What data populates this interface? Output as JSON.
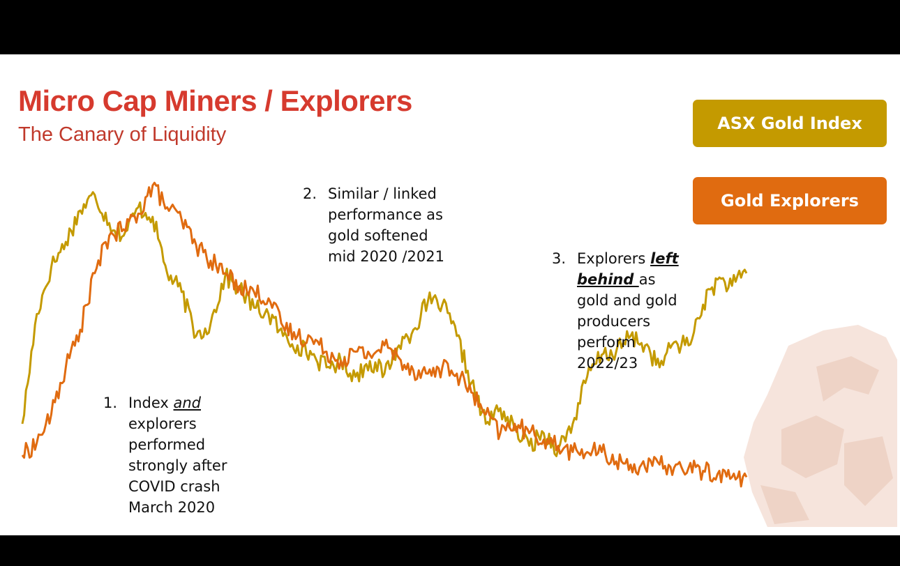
{
  "slide": {
    "title": "Micro Cap Miners / Explorers",
    "subtitle": "The Canary of Liquidity"
  },
  "legend": {
    "gold_index_label": "ASX Gold Index",
    "gold_index_color": "#c49a00",
    "gold_explorers_label": "Gold Explorers",
    "gold_explorers_color": "#e06b10"
  },
  "notes": [
    {
      "number": "1.",
      "lines": [
        "Index and",
        "explorers",
        "performed",
        "strongly after",
        "COVID crash",
        "March 2020"
      ],
      "line1_prefix": "Index ",
      "line1_emphasis": "and"
    },
    {
      "number": "2.",
      "lines": [
        "Similar / linked",
        "performance as",
        "gold softened",
        "mid 2020 /2021"
      ]
    },
    {
      "number": "3.",
      "line1_prefix": "Explorers ",
      "line1_emphasis": "left",
      "line2_emphasis": "behind ",
      "line2_suffix": "as",
      "lines": [
        "Explorers left",
        "behind as",
        "gold and gold",
        "producers",
        "perform",
        "2022/23"
      ]
    }
  ],
  "chart_data": {
    "type": "line",
    "title": "",
    "xlabel": "",
    "ylabel": "",
    "ylim": [
      0,
      100
    ],
    "grid": false,
    "x": [
      0,
      2,
      4,
      6,
      8,
      10,
      12,
      14,
      16,
      18,
      20,
      22,
      24,
      26,
      28,
      30,
      32,
      34,
      36,
      38,
      40,
      42,
      44,
      46,
      48,
      50,
      52,
      54,
      56,
      58,
      60,
      62,
      64,
      66,
      68,
      70,
      72,
      74,
      76,
      78,
      80,
      82,
      84,
      86,
      88,
      90,
      92,
      94,
      96,
      98,
      100
    ],
    "series": [
      {
        "name": "ASX Gold Index",
        "color": "#c49a00",
        "values": [
          20,
          55,
          70,
          78,
          88,
          93,
          84,
          80,
          89,
          86,
          68,
          62,
          48,
          52,
          67,
          63,
          57,
          55,
          48,
          45,
          42,
          38,
          40,
          35,
          40,
          36,
          45,
          50,
          59,
          58,
          48,
          33,
          20,
          25,
          18,
          13,
          17,
          12,
          20,
          35,
          42,
          43,
          48,
          45,
          38,
          46,
          45,
          58,
          66,
          64,
          68
        ]
      },
      {
        "name": "Gold Explorers",
        "color": "#e06b10",
        "values": [
          10,
          14,
          23,
          38,
          50,
          68,
          80,
          82,
          87,
          96,
          89,
          85,
          77,
          72,
          68,
          64,
          62,
          60,
          51,
          48,
          47,
          43,
          40,
          43,
          42,
          45,
          41,
          37,
          36,
          38,
          36,
          30,
          23,
          17,
          20,
          17,
          15,
          13,
          11,
          11,
          11,
          8,
          7,
          6,
          7,
          6,
          6,
          5,
          4,
          3,
          3
        ]
      }
    ]
  }
}
